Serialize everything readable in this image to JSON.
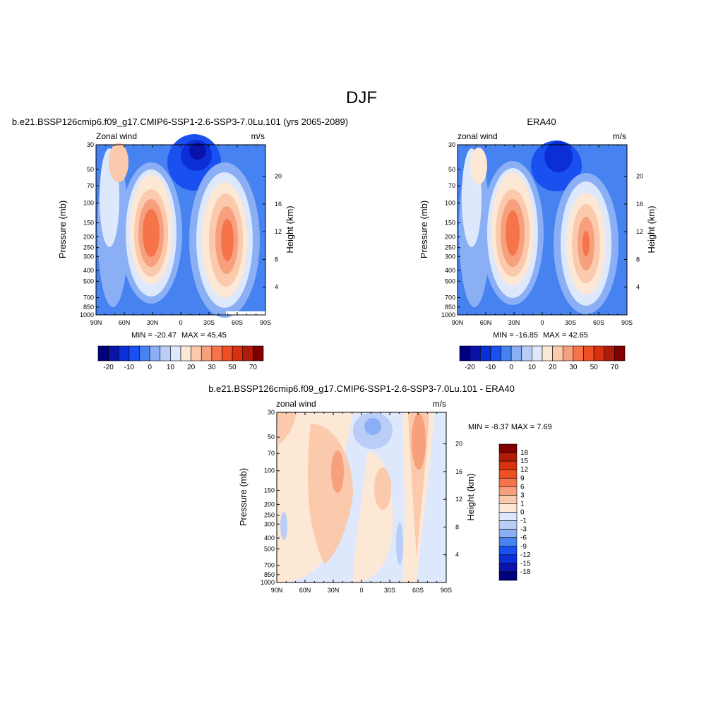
{
  "page": {
    "season": "DJF"
  },
  "palette": {
    "model_obs": [
      "#00007f",
      "#0a12a8",
      "#0a2fd6",
      "#1a4ff0",
      "#4682f0",
      "#8aaff5",
      "#b9cdf7",
      "#dde8fc",
      "#fde7d5",
      "#fbc9ac",
      "#f7a07d",
      "#f6744a",
      "#f04e23",
      "#d9300f",
      "#b01c0a",
      "#800000"
    ],
    "diff": [
      "#00007f",
      "#0a12a8",
      "#0a2fd6",
      "#1a4ff0",
      "#4682f0",
      "#8aaff5",
      "#b9cdf7",
      "#dde8fc",
      "#fde7d5",
      "#fbc9ac",
      "#f7a07d",
      "#f6744a",
      "#f04e23",
      "#d9300f",
      "#b01c0a",
      "#800000"
    ]
  },
  "chart_data": [
    {
      "id": "model",
      "type": "heatmap",
      "title": "b.e21.BSSP126cmip6.f09_g17.CMIP6-SSP1-2.6-SSP3-7.0Lu.101 (yrs 2065-2089)",
      "left_label": "Zonal wind",
      "right_label": "m/s",
      "xlabel": "",
      "ylabel": "Pressure (mb)",
      "ylabel_right": "Height (km)",
      "x_ticks": [
        "90N",
        "60N",
        "30N",
        "0",
        "30S",
        "60S",
        "90S"
      ],
      "y_ticks": [
        "30",
        "50",
        "70",
        "100",
        "150",
        "200",
        "250",
        "300",
        "400",
        "500",
        "700",
        "850",
        "1000"
      ],
      "y_ticks_right": [
        "20",
        "16",
        "12",
        "8",
        "4"
      ],
      "min_label": "MIN = -20.47",
      "max_label": "MAX =  45.45",
      "levels": [
        "-20",
        "-10",
        "0",
        "10",
        "20",
        "30",
        "50",
        "70"
      ],
      "min": -20.47,
      "max": 45.45
    },
    {
      "id": "obs",
      "type": "heatmap",
      "title": "ERA40",
      "left_label": "zonal wind",
      "right_label": "m/s",
      "xlabel": "",
      "ylabel": "Pressure (mb)",
      "ylabel_right": "Height (km)",
      "x_ticks": [
        "90N",
        "60N",
        "30N",
        "0",
        "30S",
        "60S",
        "90S"
      ],
      "y_ticks": [
        "30",
        "50",
        "70",
        "100",
        "150",
        "200",
        "250",
        "300",
        "400",
        "500",
        "700",
        "850",
        "1000"
      ],
      "y_ticks_right": [
        "20",
        "16",
        "12",
        "8",
        "4"
      ],
      "min_label": "MIN = -16.85",
      "max_label": "MAX =  42.65",
      "levels": [
        "-20",
        "-10",
        "0",
        "10",
        "20",
        "30",
        "50",
        "70"
      ],
      "min": -16.85,
      "max": 42.65
    },
    {
      "id": "diff",
      "type": "heatmap",
      "title": "b.e21.BSSP126cmip6.f09_g17.CMIP6-SSP1-2.6-SSP3-7.0Lu.101 - ERA40",
      "left_label": "zonal wind",
      "right_label": "m/s",
      "xlabel": "",
      "ylabel": "Pressure (mb)",
      "ylabel_right": "Height (km)",
      "x_ticks": [
        "90N",
        "60N",
        "30N",
        "0",
        "30S",
        "60S",
        "90S"
      ],
      "y_ticks": [
        "30",
        "50",
        "70",
        "100",
        "150",
        "200",
        "250",
        "300",
        "400",
        "500",
        "700",
        "850",
        "1000"
      ],
      "y_ticks_right": [
        "20",
        "16",
        "12",
        "8",
        "4"
      ],
      "stat_label": "MIN =  -8.37   MAX =   7.69",
      "levels": [
        "18",
        "15",
        "12",
        "9",
        "6",
        "3",
        "1",
        "0",
        "-1",
        "-3",
        "-6",
        "-9",
        "-12",
        "-15",
        "-18"
      ],
      "min": -8.37,
      "max": 7.69
    }
  ]
}
